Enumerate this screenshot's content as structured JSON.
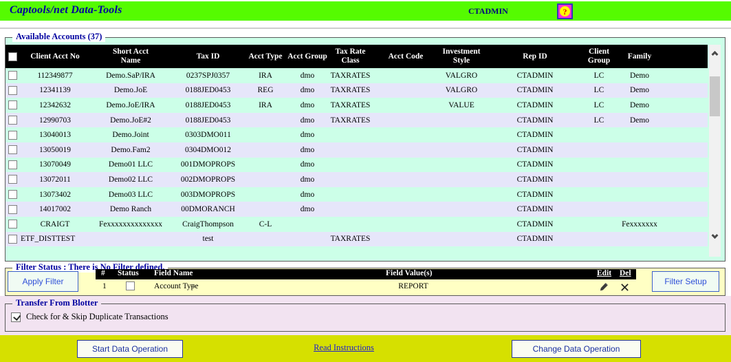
{
  "titlebar": {
    "title": "Captools/net Data-Tools",
    "user": "CTADMIN",
    "help_glyph": "?"
  },
  "accounts": {
    "legend": "Available Accounts (37)",
    "columns": [
      "Client Acct No",
      "Short Acct\nName",
      "Tax ID",
      "Acct Type",
      "Acct Group",
      "Tax Rate\nClass",
      "Acct Code",
      "Investment\nStyle",
      "Rep ID",
      "Client\nGroup",
      "Family"
    ],
    "col_keys": [
      "client-acct-no",
      "short-acct-name",
      "tax-id",
      "acct-type",
      "acct-group",
      "tax-rate-class",
      "acct-code",
      "investment-style",
      "rep-id",
      "client-group",
      "family"
    ],
    "rows": [
      [
        "112349877",
        "Demo.SaP/IRA",
        "0237SPJ0357",
        "IRA",
        "dmo",
        "TAXRATES",
        "",
        "VALGRO",
        "CTADMIN",
        "LC",
        "Demo"
      ],
      [
        "12341139",
        "Demo.JoE",
        "0188JED0453",
        "REG",
        "dmo",
        "TAXRATES",
        "",
        "VALGRO",
        "CTADMIN",
        "LC",
        "Demo"
      ],
      [
        "12342632",
        "Demo.JoE/IRA",
        "0188JED0453",
        "IRA",
        "dmo",
        "TAXRATES",
        "",
        "VALUE",
        "CTADMIN",
        "LC",
        "Demo"
      ],
      [
        "12990703",
        "Demo.JoE#2",
        "0188JED0453",
        "",
        "dmo",
        "TAXRATES",
        "",
        "",
        "CTADMIN",
        "LC",
        "Demo"
      ],
      [
        "13040013",
        "Demo.Joint",
        "0303DMO011",
        "",
        "dmo",
        "",
        "",
        "",
        "CTADMIN",
        "",
        ""
      ],
      [
        "13050019",
        "Demo.Fam2",
        "0304DMO012",
        "",
        "dmo",
        "",
        "",
        "",
        "CTADMIN",
        "",
        ""
      ],
      [
        "13070049",
        "Demo01 LLC",
        "001DMOPROPS",
        "",
        "dmo",
        "",
        "",
        "",
        "CTADMIN",
        "",
        ""
      ],
      [
        "13072011",
        "Demo02 LLC",
        "002DMOPROPS",
        "",
        "dmo",
        "",
        "",
        "",
        "CTADMIN",
        "",
        ""
      ],
      [
        "13073402",
        "Demo03 LLC",
        "003DMOPROPS",
        "",
        "dmo",
        "",
        "",
        "",
        "CTADMIN",
        "",
        ""
      ],
      [
        "14017002",
        "Demo Ranch",
        "00DMORANCH",
        "",
        "dmo",
        "",
        "",
        "",
        "CTADMIN",
        "",
        ""
      ],
      [
        "CRAIGT",
        "Fexxxxxxxxxxxxxx",
        "CraigThompson",
        "C-L",
        "",
        "",
        "",
        "",
        "CTADMIN",
        "",
        "Fexxxxxxx"
      ],
      [
        "ETF_DISTTEST",
        "",
        "test",
        "",
        "",
        "TAXRATES",
        "",
        "",
        "CTADMIN",
        "",
        ""
      ]
    ]
  },
  "filter": {
    "legend": "Filter Status : There is No Filter defined.",
    "apply_button": "Apply Filter",
    "setup_button": "Filter Setup",
    "table_headers": {
      "num": "#",
      "status": "Status",
      "field_name": "Field Name",
      "field_value": "Field Value(s)",
      "edit": "Edit",
      "del": "Del"
    },
    "row": {
      "num": "1",
      "status_checked": false,
      "field_name": "Account Type",
      "operator": "=",
      "value": "REPORT"
    }
  },
  "transfer": {
    "legend": "Transfer From Blotter",
    "checkbox_label": "Check for & Skip Duplicate Transactions",
    "checked": true
  },
  "footer": {
    "start_button": "Start Data Operation",
    "link": "Read Instructions",
    "change_button": "Change Data Operation"
  },
  "colors": {
    "titlebar_green": "#55FB01",
    "row_mint": "#CCFFE8",
    "row_lavender": "#E6E6FA",
    "filter_yellow": "#FFFFC4",
    "transfer_pink": "#F2E3F1",
    "footer_yellow_green": "#D6E000",
    "legend_blue": "#0000A0",
    "table_header_bg": "#000000"
  }
}
